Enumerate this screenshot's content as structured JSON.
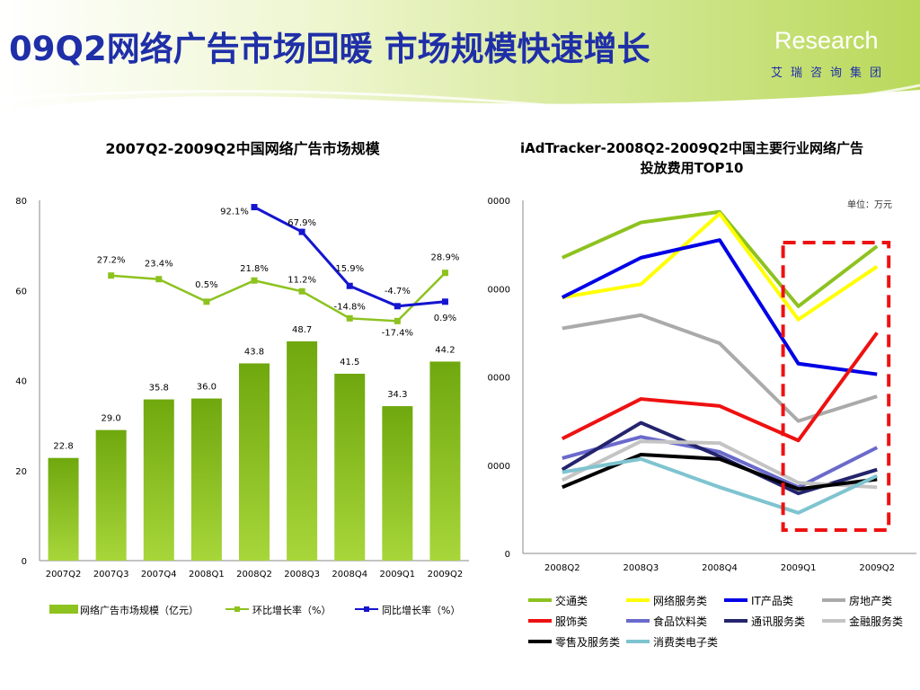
{
  "header": {
    "title": "09Q2网络广告市场回暖 市场规模快速增长",
    "brand": "Research",
    "brand_sub": "艾瑞咨询集团",
    "accent_color": "#1f2fa8",
    "background_color": "#c9e27a"
  },
  "chart_data": [
    {
      "type": "bar",
      "title": "2007Q2-2009Q2中国网络广告市场规模",
      "categories": [
        "2007Q2",
        "2007Q3",
        "2007Q4",
        "2008Q1",
        "2008Q2",
        "2008Q3",
        "2008Q4",
        "2009Q1",
        "2009Q2"
      ],
      "ylim": [
        0,
        80
      ],
      "yticks": [
        0,
        20,
        40,
        60,
        80
      ],
      "grid": false,
      "legend_position": "bottom",
      "series": [
        {
          "name": "网络广告市场规模（亿元）",
          "kind": "bar",
          "color": "#8dc21f",
          "values": [
            22.8,
            29.0,
            35.8,
            36.0,
            43.8,
            48.7,
            41.5,
            34.3,
            44.2
          ],
          "labels": [
            "22.8",
            "29.0",
            "35.8",
            "36.0",
            "43.8",
            "48.7",
            "41.5",
            "34.3",
            "44.2"
          ]
        },
        {
          "name": "环比增长率（%）",
          "kind": "line",
          "color": "#8dc21f",
          "values": [
            null,
            27.2,
            23.4,
            0.5,
            21.8,
            11.2,
            -14.8,
            -17.4,
            28.9
          ],
          "plot_positions": [
            null,
            63.3,
            62.5,
            57.5,
            62.2,
            59.8,
            53.8,
            53.2,
            63.9
          ],
          "labels": [
            null,
            "27.2%",
            "23.4%",
            "0.5%",
            "21.8%",
            "11.2%",
            "-14.8%",
            "-17.4%",
            "28.9%"
          ]
        },
        {
          "name": "同比增长率（%）",
          "kind": "line",
          "color": "#1515d0",
          "values": [
            null,
            null,
            null,
            null,
            92.1,
            67.9,
            15.9,
            -4.7,
            0.9
          ],
          "plot_positions": [
            null,
            null,
            null,
            null,
            78.5,
            73.0,
            61.0,
            56.5,
            57.5
          ],
          "labels": [
            null,
            null,
            null,
            null,
            "92.1%",
            "67.9%",
            "15.9%",
            "-4.7%",
            "0.9%"
          ]
        }
      ]
    },
    {
      "type": "line",
      "title_lines": [
        "iAdTracker-2008Q2-2009Q2中国主要行业网络广告",
        "投放费用TOP10"
      ],
      "unit_note": "单位：万元",
      "categories": [
        "2008Q2",
        "2008Q3",
        "2008Q4",
        "2009Q1",
        "2009Q2"
      ],
      "ylim": [
        0,
        40000
      ],
      "ytick_labels": [
        "0",
        "0000",
        "0000",
        "0000",
        "0000"
      ],
      "grid": false,
      "legend_position": "bottom",
      "highlight": "2009Q1-2009Q2",
      "series": [
        {
          "name": "交通类",
          "color": "#8dc21f",
          "values": [
            33500,
            37500,
            38700,
            28000,
            34800
          ]
        },
        {
          "name": "网络服务类",
          "color": "#ffff00",
          "values": [
            29000,
            30500,
            38500,
            26500,
            32500
          ]
        },
        {
          "name": "IT产品类",
          "color": "#0000e6",
          "values": [
            29000,
            33500,
            35500,
            21500,
            20300
          ]
        },
        {
          "name": "房地产类",
          "color": "#aaaaaa",
          "values": [
            25500,
            27000,
            23800,
            15000,
            17800
          ]
        },
        {
          "name": "服饰类",
          "color": "#ee1111",
          "values": [
            13000,
            17500,
            16700,
            12800,
            25000
          ]
        },
        {
          "name": "食品饮料类",
          "color": "#6a6acc",
          "values": [
            10800,
            13200,
            11500,
            7500,
            12000
          ]
        },
        {
          "name": "通讯服务类",
          "color": "#24246e",
          "values": [
            9500,
            14800,
            11000,
            6800,
            9500
          ]
        },
        {
          "name": "金融服务类",
          "color": "#c4c4c4",
          "values": [
            8300,
            12700,
            12500,
            8000,
            7500
          ]
        },
        {
          "name": "零售及服务类",
          "color": "#000000",
          "values": [
            7500,
            11200,
            10700,
            7300,
            8400
          ]
        },
        {
          "name": "消费类电子类",
          "color": "#7ec4d0",
          "values": [
            9200,
            10700,
            7500,
            4600,
            8800
          ]
        }
      ]
    }
  ]
}
